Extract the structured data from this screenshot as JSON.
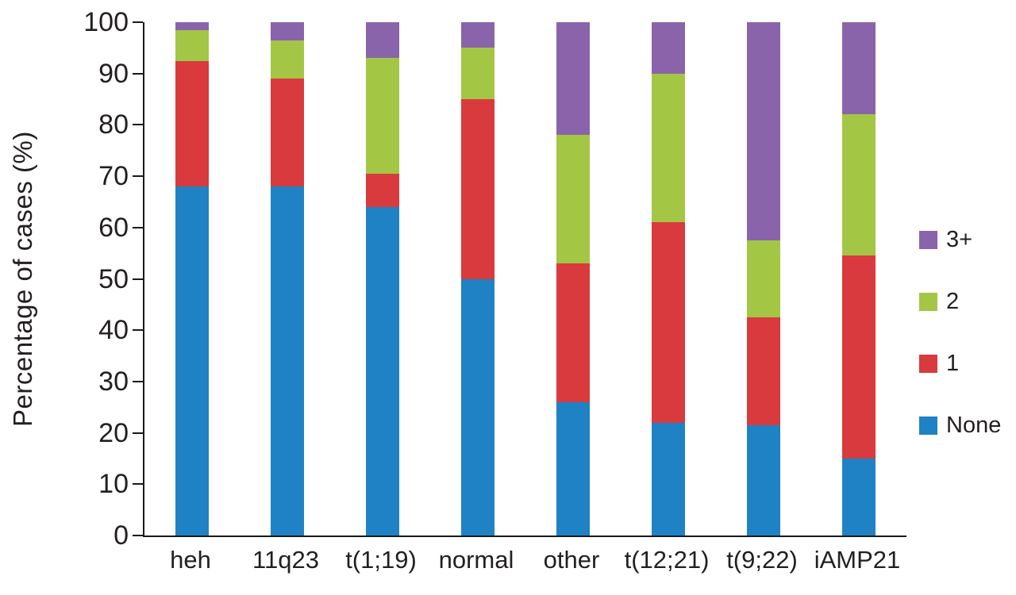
{
  "chart_data": {
    "type": "bar",
    "variant": "stacked-100",
    "title": "",
    "xlabel": "",
    "ylabel": "Percentage of cases (%)",
    "ylim": [
      0,
      100
    ],
    "yticks": [
      0,
      10,
      20,
      30,
      40,
      50,
      60,
      70,
      80,
      90,
      100
    ],
    "grid": false,
    "categories": [
      "heh",
      "11q23",
      "t(1;19)",
      "normal",
      "other",
      "t(12;21)",
      "t(9;22)",
      "iAMP21"
    ],
    "series": [
      {
        "name": "None",
        "color": "#1f82c4",
        "values": [
          68,
          68,
          64,
          50,
          26,
          22,
          21.5,
          15
        ]
      },
      {
        "name": "1",
        "color": "#d93a3e",
        "values": [
          24.5,
          21,
          6.5,
          35,
          27,
          39,
          21,
          39.5
        ]
      },
      {
        "name": "2",
        "color": "#a4c645",
        "values": [
          6,
          7.5,
          22.5,
          10,
          25,
          29,
          15,
          27.5
        ]
      },
      {
        "name": "3+",
        "color": "#8a64aa",
        "values": [
          1.5,
          3.5,
          7,
          5,
          22,
          10,
          42.5,
          18
        ]
      }
    ],
    "legend": {
      "position": "right",
      "items": [
        "3+",
        "2",
        "1",
        "None"
      ]
    },
    "axis_color": "#1a1a1a"
  }
}
